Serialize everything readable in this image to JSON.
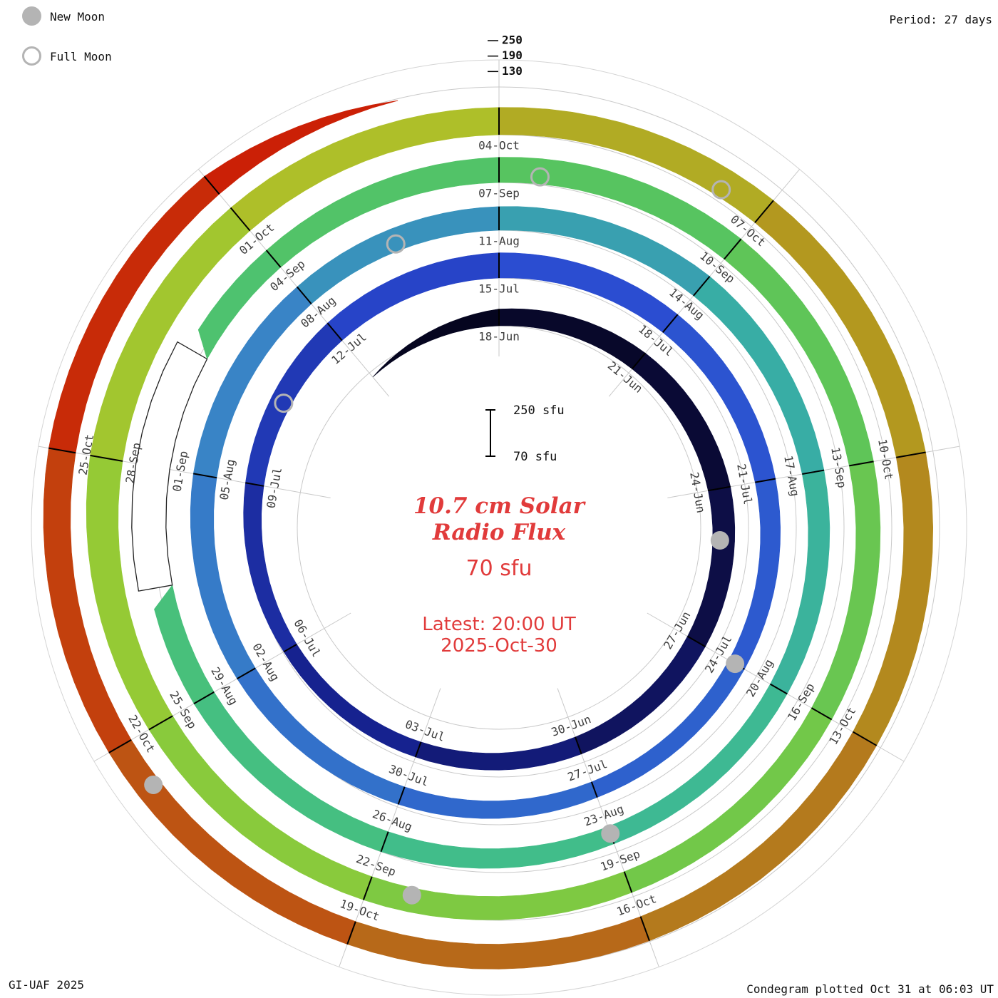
{
  "legend": {
    "new_moon": "New Moon",
    "full_moon": "Full Moon"
  },
  "header": {
    "period": "Period: 27 days"
  },
  "footer": {
    "credit": "GI-UAF 2025",
    "plotted": "Condegram plotted Oct 31 at 06:03 UT"
  },
  "center": {
    "title_line1": "10.7 cm Solar",
    "title_line2": "Radio Flux",
    "current_value": "70 sfu",
    "latest_time": "Latest: 20:00 UT",
    "latest_date": "2025-Oct-30",
    "scalebar_top": "250 sfu",
    "scalebar_bottom": "70 sfu"
  },
  "radial_scale": {
    "values": [
      250,
      190,
      130
    ]
  },
  "colors": {
    "center_text": "#e13b3b",
    "grid": "#c9c9c9",
    "grid_outer": "#d4d4d4",
    "tick": "#000000",
    "label_text": "#3d3d3d",
    "moon": "#b4b4b4",
    "missing_fill": "#ffffff",
    "missing_stroke": "#222222",
    "colormap_stops": [
      [
        -3,
        "#04041a"
      ],
      [
        6,
        "#0b0b3a"
      ],
      [
        16,
        "#15208c"
      ],
      [
        27,
        "#2a4ad2"
      ],
      [
        40,
        "#2f66cc"
      ],
      [
        50,
        "#3a86c6"
      ],
      [
        58,
        "#38aca6"
      ],
      [
        66,
        "#3fbc8e"
      ],
      [
        76,
        "#4cc272"
      ],
      [
        84,
        "#5ac45c"
      ],
      [
        92,
        "#74c848"
      ],
      [
        100,
        "#93cb36"
      ],
      [
        106,
        "#adc22a"
      ],
      [
        112,
        "#b39a1f"
      ],
      [
        120,
        "#b4731c"
      ],
      [
        126,
        "#c04a10"
      ],
      [
        131,
        "#c92807"
      ],
      [
        135,
        "#cc1804"
      ]
    ]
  },
  "chart_data": {
    "type": "area",
    "subtype": "condegram-spiral",
    "title": "10.7 cm Solar Radio Flux",
    "units": "sfu",
    "period_days": 27,
    "start_date_center": "2025-06-18",
    "end_date_outer": "2025-10-30",
    "baseline_sfu": 70,
    "scale_top_sfu": 250,
    "days": [
      -3,
      0,
      3,
      6,
      9,
      12,
      15,
      18,
      21,
      24,
      27,
      30,
      33,
      36,
      39,
      42,
      45,
      48,
      51,
      54,
      57,
      60,
      63,
      66,
      69,
      72,
      75,
      78,
      81,
      84,
      87,
      90,
      93,
      96,
      99,
      102,
      105,
      108,
      111,
      114,
      117,
      120,
      123,
      126,
      129,
      132,
      134
    ],
    "dates": [
      "15-Jun",
      "18-Jun",
      "21-Jun",
      "24-Jun",
      "27-Jun",
      "30-Jun",
      "03-Jul",
      "06-Jul",
      "09-Jul",
      "12-Jul",
      "15-Jul",
      "18-Jul",
      "21-Jul",
      "24-Jul",
      "27-Jul",
      "30-Jul",
      "02-Aug",
      "05-Aug",
      "08-Aug",
      "11-Aug",
      "14-Aug",
      "17-Aug",
      "20-Aug",
      "23-Aug",
      "26-Aug",
      "29-Aug",
      "01-Sep",
      "04-Sep",
      "07-Sep",
      "10-Sep",
      "13-Sep",
      "16-Sep",
      "19-Sep",
      "22-Sep",
      "25-Sep",
      "28-Sep",
      "01-Oct",
      "04-Oct",
      "07-Oct",
      "10-Oct",
      "13-Oct",
      "16-Oct",
      "19-Oct",
      "22-Oct",
      "25-Oct",
      "28-Oct",
      "30-Oct"
    ],
    "values": [
      70,
      135,
      150,
      158,
      150,
      140,
      132,
      128,
      142,
      158,
      168,
      160,
      150,
      140,
      134,
      142,
      152,
      162,
      156,
      162,
      168,
      156,
      146,
      140,
      152,
      160,
      null,
      156,
      168,
      172,
      166,
      160,
      156,
      166,
      176,
      198,
      186,
      176,
      182,
      186,
      176,
      170,
      164,
      170,
      176,
      160,
      70
    ],
    "missing_days": [
      73.5,
      76.5
    ],
    "missing_dates": "01-Sep to 03-Sep",
    "tick_labels": [
      {
        "day": 0,
        "text": "18-Jun"
      },
      {
        "day": 3,
        "text": "21-Jun"
      },
      {
        "day": 6,
        "text": "24-Jun"
      },
      {
        "day": 9,
        "text": "27-Jun"
      },
      {
        "day": 12,
        "text": "30-Jun"
      },
      {
        "day": 15,
        "text": "03-Jul"
      },
      {
        "day": 18,
        "text": "06-Jul"
      },
      {
        "day": 21,
        "text": "09-Jul"
      },
      {
        "day": 24,
        "text": "12-Jul"
      },
      {
        "day": 27,
        "text": "15-Jul"
      },
      {
        "day": 30,
        "text": "18-Jul"
      },
      {
        "day": 33,
        "text": "21-Jul"
      },
      {
        "day": 36,
        "text": "24-Jul"
      },
      {
        "day": 39,
        "text": "27-Jul"
      },
      {
        "day": 42,
        "text": "30-Jul"
      },
      {
        "day": 45,
        "text": "02-Aug"
      },
      {
        "day": 48,
        "text": "05-Aug"
      },
      {
        "day": 51,
        "text": "08-Aug"
      },
      {
        "day": 54,
        "text": "11-Aug"
      },
      {
        "day": 57,
        "text": "14-Aug"
      },
      {
        "day": 60,
        "text": "17-Aug"
      },
      {
        "day": 63,
        "text": "20-Aug"
      },
      {
        "day": 66,
        "text": "23-Aug"
      },
      {
        "day": 69,
        "text": "26-Aug"
      },
      {
        "day": 72,
        "text": "29-Aug"
      },
      {
        "day": 75,
        "text": "01-Sep"
      },
      {
        "day": 78,
        "text": "04-Sep"
      },
      {
        "day": 81,
        "text": "07-Sep"
      },
      {
        "day": 84,
        "text": "10-Sep"
      },
      {
        "day": 87,
        "text": "13-Sep"
      },
      {
        "day": 90,
        "text": "16-Sep"
      },
      {
        "day": 93,
        "text": "19-Sep"
      },
      {
        "day": 96,
        "text": "22-Sep"
      },
      {
        "day": 99,
        "text": "25-Sep"
      },
      {
        "day": 102,
        "text": "28-Sep"
      },
      {
        "day": 105,
        "text": "01-Oct"
      },
      {
        "day": 108,
        "text": "04-Oct"
      },
      {
        "day": 111,
        "text": "07-Oct"
      },
      {
        "day": 114,
        "text": "10-Oct"
      },
      {
        "day": 117,
        "text": "13-Oct"
      },
      {
        "day": 120,
        "text": "16-Oct"
      },
      {
        "day": 123,
        "text": "19-Oct"
      },
      {
        "day": 126,
        "text": "22-Oct"
      },
      {
        "day": 129,
        "text": "25-Oct"
      }
    ],
    "moons": {
      "new": [
        {
          "day": 7,
          "date": "25-Jun"
        },
        {
          "day": 36,
          "date": "24-Jul"
        },
        {
          "day": 66,
          "date": "23-Aug"
        },
        {
          "day": 95.5,
          "date": "21-Sep"
        },
        {
          "day": 125.5,
          "date": "21-Oct"
        }
      ],
      "full": [
        {
          "day": 22.5,
          "date": "10-Jul"
        },
        {
          "day": 52.5,
          "date": "09-Aug"
        },
        {
          "day": 81.5,
          "date": "07-Sep"
        },
        {
          "day": 110.5,
          "date": "07-Oct"
        }
      ]
    }
  }
}
